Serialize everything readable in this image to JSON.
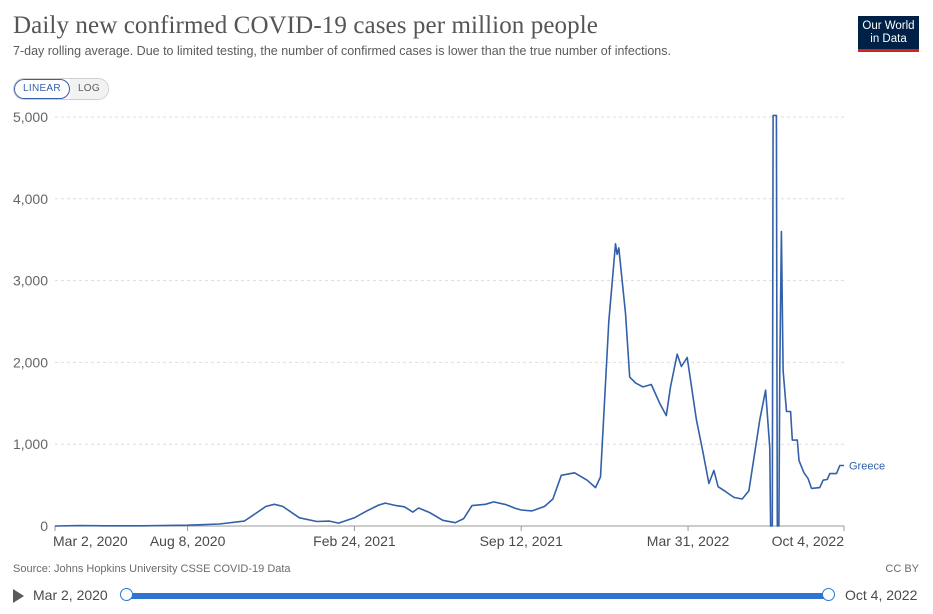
{
  "header": {
    "title": "Daily new confirmed COVID-19 cases per million people",
    "subtitle": "7-day rolling average. Due to limited testing, the number of confirmed cases is lower than the true number of infections.",
    "logo_line1": "Our World",
    "logo_line2": "in Data"
  },
  "colors": {
    "series": "#3360a9",
    "logo_bg": "#002147",
    "logo_accent": "#ce261e",
    "grid": "#dddddd",
    "timeline": "#2f74d0"
  },
  "controls": {
    "linear_label": "LINEAR",
    "log_label": "LOG",
    "active_scale": "linear"
  },
  "chart_data": {
    "type": "line",
    "title": "Daily new confirmed COVID-19 cases per million people",
    "xlabel": "",
    "ylabel": "",
    "xlim": [
      "2020-03-02",
      "2022-10-04"
    ],
    "ylim": [
      0,
      5000
    ],
    "yticks": [
      0,
      1000,
      2000,
      3000,
      4000,
      5000
    ],
    "ytick_labels": [
      "0",
      "1,000",
      "2,000",
      "3,000",
      "4,000",
      "5,000"
    ],
    "xticks": [
      "2020-03-02",
      "2020-08-08",
      "2021-02-24",
      "2021-09-12",
      "2022-03-31",
      "2022-10-04"
    ],
    "xtick_labels": [
      "Mar 2, 2020",
      "Aug 8, 2020",
      "Feb 24, 2021",
      "Sep 12, 2021",
      "Mar 31, 2022",
      "Oct 4, 2022"
    ],
    "grid": "horizontal-dashed",
    "legend": "end-of-line label",
    "series": [
      {
        "name": "Greece",
        "color": "#3360a9",
        "points": [
          [
            "2020-03-02",
            0
          ],
          [
            "2020-04-01",
            5
          ],
          [
            "2020-05-01",
            2
          ],
          [
            "2020-06-15",
            2
          ],
          [
            "2020-08-08",
            10
          ],
          [
            "2020-09-15",
            25
          ],
          [
            "2020-10-15",
            60
          ],
          [
            "2020-11-10",
            240
          ],
          [
            "2020-11-20",
            265
          ],
          [
            "2020-11-30",
            240
          ],
          [
            "2020-12-20",
            100
          ],
          [
            "2021-01-10",
            55
          ],
          [
            "2021-01-25",
            60
          ],
          [
            "2021-02-05",
            35
          ],
          [
            "2021-02-24",
            100
          ],
          [
            "2021-03-10",
            180
          ],
          [
            "2021-03-25",
            255
          ],
          [
            "2021-04-02",
            280
          ],
          [
            "2021-04-15",
            250
          ],
          [
            "2021-04-25",
            235
          ],
          [
            "2021-05-05",
            170
          ],
          [
            "2021-05-12",
            220
          ],
          [
            "2021-05-25",
            165
          ],
          [
            "2021-06-10",
            70
          ],
          [
            "2021-06-25",
            40
          ],
          [
            "2021-07-05",
            90
          ],
          [
            "2021-07-15",
            250
          ],
          [
            "2021-07-31",
            265
          ],
          [
            "2021-08-10",
            295
          ],
          [
            "2021-08-25",
            260
          ],
          [
            "2021-09-05",
            215
          ],
          [
            "2021-09-12",
            195
          ],
          [
            "2021-09-25",
            185
          ],
          [
            "2021-10-10",
            240
          ],
          [
            "2021-10-20",
            330
          ],
          [
            "2021-10-30",
            620
          ],
          [
            "2021-11-15",
            650
          ],
          [
            "2021-11-30",
            560
          ],
          [
            "2021-12-10",
            470
          ],
          [
            "2021-12-16",
            600
          ],
          [
            "2021-12-26",
            2500
          ],
          [
            "2022-01-03",
            3450
          ],
          [
            "2022-01-05",
            3320
          ],
          [
            "2022-01-07",
            3400
          ],
          [
            "2022-01-15",
            2600
          ],
          [
            "2022-01-20",
            1820
          ],
          [
            "2022-01-27",
            1750
          ],
          [
            "2022-02-05",
            1700
          ],
          [
            "2022-02-15",
            1730
          ],
          [
            "2022-02-25",
            1500
          ],
          [
            "2022-03-05",
            1350
          ],
          [
            "2022-03-10",
            1700
          ],
          [
            "2022-03-18",
            2100
          ],
          [
            "2022-03-23",
            1950
          ],
          [
            "2022-03-30",
            2060
          ],
          [
            "2022-04-10",
            1300
          ],
          [
            "2022-04-18",
            900
          ],
          [
            "2022-04-25",
            520
          ],
          [
            "2022-05-01",
            680
          ],
          [
            "2022-05-06",
            480
          ],
          [
            "2022-05-15",
            420
          ],
          [
            "2022-05-25",
            350
          ],
          [
            "2022-06-04",
            330
          ],
          [
            "2022-06-12",
            430
          ],
          [
            "2022-06-25",
            1300
          ],
          [
            "2022-07-02",
            1660
          ],
          [
            "2022-07-07",
            950
          ],
          [
            "2022-07-08",
            0
          ],
          [
            "2022-07-10",
            0
          ],
          [
            "2022-07-11",
            5020
          ],
          [
            "2022-07-15",
            5020
          ],
          [
            "2022-07-16",
            0
          ],
          [
            "2022-07-18",
            0
          ],
          [
            "2022-07-19",
            1900
          ],
          [
            "2022-07-21",
            3600
          ],
          [
            "2022-07-23",
            1900
          ],
          [
            "2022-07-27",
            1400
          ],
          [
            "2022-08-01",
            1400
          ],
          [
            "2022-08-03",
            1050
          ],
          [
            "2022-08-09",
            1050
          ],
          [
            "2022-08-11",
            800
          ],
          [
            "2022-08-17",
            650
          ],
          [
            "2022-08-22",
            580
          ],
          [
            "2022-08-26",
            460
          ],
          [
            "2022-09-05",
            470
          ],
          [
            "2022-09-09",
            560
          ],
          [
            "2022-09-14",
            570
          ],
          [
            "2022-09-17",
            640
          ],
          [
            "2022-09-25",
            640
          ],
          [
            "2022-09-29",
            740
          ],
          [
            "2022-10-04",
            740
          ]
        ]
      }
    ]
  },
  "footer": {
    "source": "Source: Johns Hopkins University CSSE COVID-19 Data",
    "license": "CC BY"
  },
  "timeline": {
    "start_label": "Mar 2, 2020",
    "end_label": "Oct 4, 2022",
    "start_fraction": 0,
    "end_fraction": 1
  }
}
